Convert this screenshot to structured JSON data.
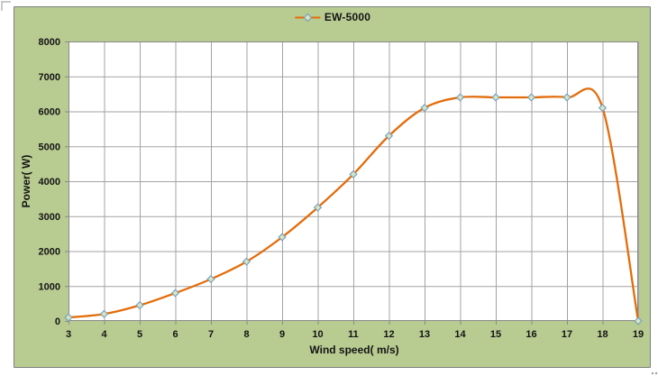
{
  "chart": {
    "legend_label": "EW-5000",
    "x_title": "Wind speed( m/s)",
    "y_title": "Power( W)"
  },
  "chart_data": {
    "type": "line",
    "title": "",
    "xlabel": "Wind speed( m/s)",
    "ylabel": "Power( W)",
    "legend_position": "top",
    "grid": true,
    "smooth": true,
    "xlim": [
      3,
      19
    ],
    "ylim": [
      0,
      8000
    ],
    "x_ticks": [
      3,
      4,
      5,
      6,
      7,
      8,
      9,
      10,
      11,
      12,
      13,
      14,
      15,
      16,
      17,
      18,
      19
    ],
    "y_ticks": [
      0,
      1000,
      2000,
      3000,
      4000,
      5000,
      6000,
      7000,
      8000
    ],
    "series": [
      {
        "name": "EW-5000",
        "marker": "diamond",
        "x": [
          3,
          4,
          5,
          6,
          7,
          8,
          9,
          10,
          11,
          12,
          13,
          14,
          15,
          16,
          17,
          18,
          19
        ],
        "values": [
          100,
          200,
          450,
          800,
          1200,
          1700,
          2400,
          3250,
          4200,
          5300,
          6100,
          6400,
          6400,
          6400,
          6400,
          6100,
          0
        ]
      }
    ],
    "colors": {
      "line": "#e46c0a",
      "marker_fill": "#d9e5bd",
      "marker_stroke": "#78a2c4",
      "chart_background": "#b8cb91",
      "plot_background": "#ffffff",
      "gridline": "#a3a3a3",
      "plot_border": "#8a8a8a",
      "text": "#141414"
    }
  }
}
